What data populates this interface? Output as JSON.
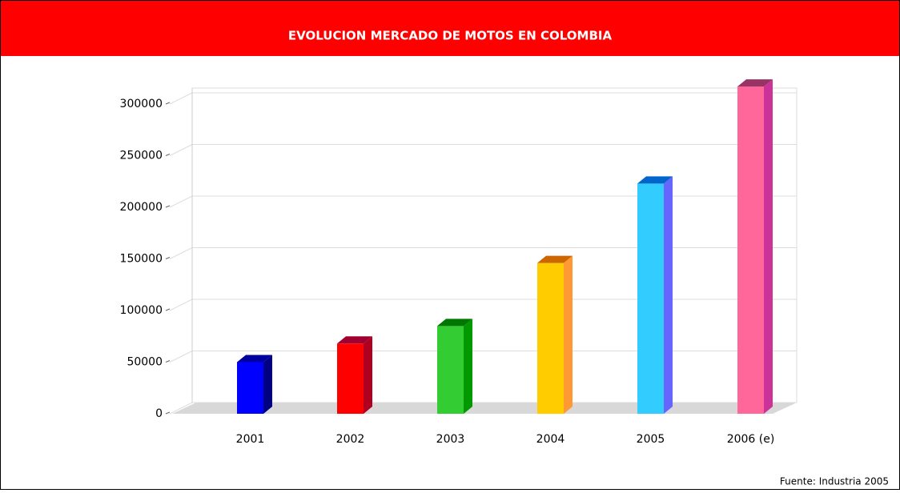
{
  "chart_data": {
    "type": "bar3d",
    "title": "EVOLUCION MERCADO DE MOTOS EN COLOMBIA",
    "categories": [
      "2001",
      "2002",
      "2003",
      "2004",
      "2005",
      "2006 (e)"
    ],
    "values": [
      50000,
      68000,
      85000,
      146000,
      223000,
      317000
    ],
    "colors": [
      "#0000ff",
      "#ff0000",
      "#33cc33",
      "#ffcc00",
      "#33ccff",
      "#ff6699"
    ],
    "side_colors": [
      "#000080",
      "#b00020",
      "#009900",
      "#ff9933",
      "#6666ff",
      "#cc3399"
    ],
    "top_colors": [
      "#0000a0",
      "#a00030",
      "#007700",
      "#cc6600",
      "#0066cc",
      "#993366"
    ],
    "ylim": [
      0,
      300000
    ],
    "yticks": [
      0,
      50000,
      100000,
      150000,
      200000,
      250000,
      300000
    ],
    "grid": true,
    "source": "Fuente: Industria 2005"
  }
}
